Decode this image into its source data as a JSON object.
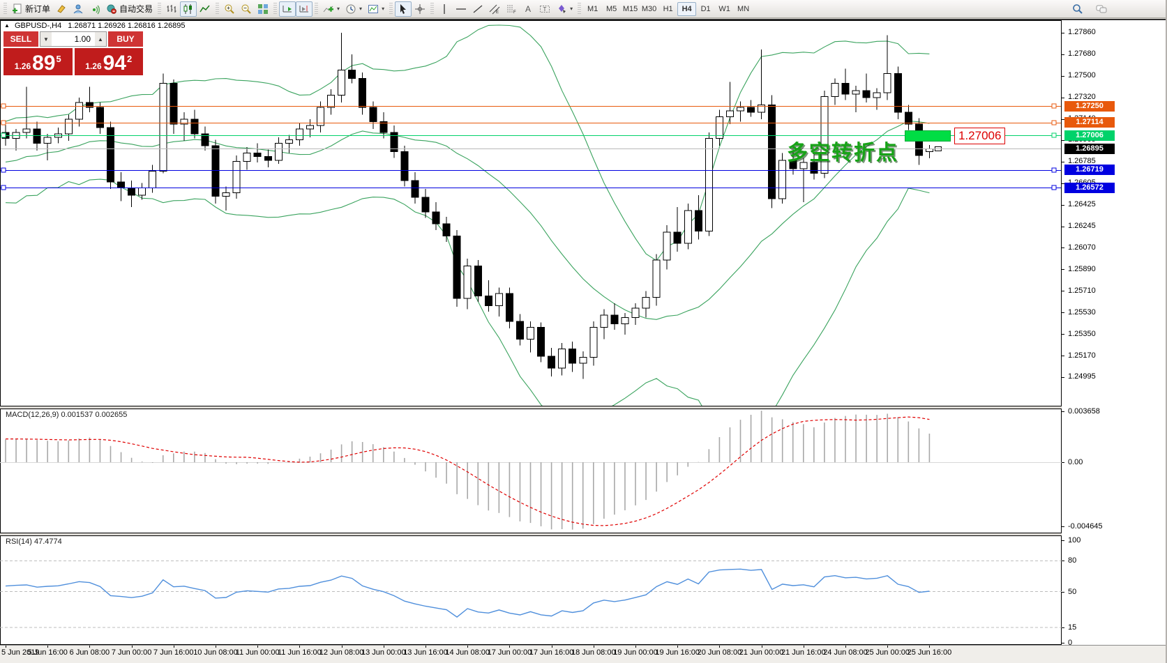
{
  "toolbar": {
    "groups": [
      {
        "items": [
          {
            "icon": "new-order-icon",
            "name": "new-order-button",
            "label": "新订单"
          },
          {
            "icon": "highlighter-icon",
            "name": "highlighter-button"
          },
          {
            "icon": "profile-icon",
            "name": "profile-button"
          },
          {
            "icon": "signal-icon",
            "name": "signal-button"
          },
          {
            "icon": "auto-trading-icon",
            "name": "auto-trading-button",
            "label": "自动交易"
          }
        ]
      },
      {
        "items": [
          {
            "icon": "bar-chart-icon",
            "name": "bar-chart-button"
          },
          {
            "icon": "candlestick-icon",
            "name": "candlestick-button",
            "active": true
          },
          {
            "icon": "line-chart-icon",
            "name": "line-chart-button"
          }
        ]
      },
      {
        "items": [
          {
            "icon": "zoom-in-icon",
            "name": "zoom-in-button"
          },
          {
            "icon": "zoom-out-icon",
            "name": "zoom-out-button"
          },
          {
            "icon": "tile-windows-icon",
            "name": "tile-windows-button"
          }
        ]
      },
      {
        "items": [
          {
            "icon": "auto-scroll-icon",
            "name": "auto-scroll-button",
            "active": true
          },
          {
            "icon": "chart-shift-icon",
            "name": "chart-shift-button",
            "active": true
          }
        ]
      },
      {
        "items": [
          {
            "icon": "indicators-icon",
            "name": "indicators-button",
            "dropdown": true
          },
          {
            "icon": "periods-icon",
            "name": "periods-button",
            "dropdown": true
          },
          {
            "icon": "templates-icon",
            "name": "templates-button",
            "dropdown": true
          }
        ]
      },
      {
        "items": [
          {
            "icon": "cursor-icon",
            "name": "cursor-button",
            "active": true
          },
          {
            "icon": "crosshair-icon",
            "name": "crosshair-button"
          }
        ]
      },
      {
        "items": [
          {
            "icon": "vertical-line-icon",
            "name": "vertical-line-button"
          },
          {
            "icon": "horizontal-line-icon",
            "name": "horizontal-line-button"
          },
          {
            "icon": "trendline-icon",
            "name": "trendline-button"
          },
          {
            "icon": "equidistant-channel-icon",
            "name": "equidistant-channel-button"
          },
          {
            "icon": "fibonacci-icon",
            "name": "fibonacci-button"
          },
          {
            "icon": "text-icon",
            "name": "text-button"
          },
          {
            "icon": "text-label-icon",
            "name": "text-label-button"
          },
          {
            "icon": "arrow-objects-icon",
            "name": "arrow-objects-button",
            "dropdown": true
          }
        ]
      }
    ],
    "timeframes": [
      "M1",
      "M5",
      "M15",
      "M30",
      "H1",
      "H4",
      "D1",
      "W1",
      "MN"
    ],
    "active_timeframe": "H4",
    "right_items": [
      {
        "icon": "search-icon",
        "name": "search-button"
      },
      {
        "icon": "chat-icon",
        "name": "chat-button"
      }
    ]
  },
  "chart_header": {
    "collapse_glyph": "▲",
    "title": "GBPUSD-,H4",
    "ohlc_text": "1.26871 1.26926 1.26816 1.26895"
  },
  "trade_panel": {
    "sell_label": "SELL",
    "buy_label": "BUY",
    "volume": "1.00",
    "volume_down_glyph": "▼",
    "volume_up_glyph": "▲",
    "sell_price": {
      "prefix": "1.26",
      "big": "89",
      "sup": "5"
    },
    "buy_price": {
      "prefix": "1.26",
      "big": "94",
      "sup": "2"
    }
  },
  "annotation": {
    "text": "多空转折点",
    "price_label": "1.27006"
  },
  "price_lines": [
    {
      "price": 1.2725,
      "color": "#e8590c",
      "badge_bg": "#e8590c",
      "handles": true
    },
    {
      "price": 1.27114,
      "color": "#e8590c",
      "badge_bg": "#e8590c",
      "handles": true
    },
    {
      "price": 1.27006,
      "color": "#00d26a",
      "badge_bg": "#00d26a",
      "handles": true
    },
    {
      "price": 1.26895,
      "color": "#b8b8b8",
      "badge_bg": "#000000",
      "handles": false
    },
    {
      "price": 1.26719,
      "color": "#0000e0",
      "badge_bg": "#0000e0",
      "handles": true
    },
    {
      "price": 1.26572,
      "color": "#0000e0",
      "badge_bg": "#0000e0",
      "handles": true
    }
  ],
  "price_axis_ticks": [
    "1.27860",
    "1.27680",
    "1.27500",
    "1.27320",
    "1.27140",
    "1.26965",
    "1.26785",
    "1.26605",
    "1.26425",
    "1.26245",
    "1.26070",
    "1.25890",
    "1.25710",
    "1.25530",
    "1.25350",
    "1.25170",
    "1.24995"
  ],
  "macd_panel": {
    "name": "MACD(12,26,9)",
    "value1": "0.001537",
    "value2": "0.002655",
    "axis": [
      "0.003658",
      "0.00",
      "-0.004645"
    ],
    "histogram_color": "#a8a8a8",
    "signal_color": "#e00000"
  },
  "rsi_panel": {
    "name": "RSI(14)",
    "value": "47.4774",
    "axis": [
      "100",
      "80",
      "50",
      "15",
      "0"
    ],
    "levels": [
      80,
      50,
      15
    ],
    "line_color": "#4f8fdc"
  },
  "time_axis": [
    "5 Jun 2019",
    "5 Jun 16:00",
    "6 Jun 08:00",
    "7 Jun 00:00",
    "7 Jun 16:00",
    "10 Jun 08:00",
    "11 Jun 00:00",
    "11 Jun 16:00",
    "12 Jun 08:00",
    "13 Jun 00:00",
    "13 Jun 16:00",
    "14 Jun 08:00",
    "17 Jun 00:00",
    "17 Jun 16:00",
    "18 Jun 08:00",
    "19 Jun 00:00",
    "19 Jun 16:00",
    "20 Jun 08:00",
    "21 Jun 00:00",
    "21 Jun 16:00",
    "24 Jun 08:00",
    "25 Jun 00:00",
    "25 Jun 16:00"
  ],
  "chart_data": {
    "type": "candlestick",
    "symbol": "GBPUSD-",
    "timeframe": "H4",
    "title": "GBPUSD-,H4 1.26871 1.26926 1.26816 1.26895",
    "ylim": [
      1.24995,
      1.2786
    ],
    "bars_per_tick": 4,
    "overlays": [
      {
        "type": "bollinger_bands",
        "period": 20,
        "deviation": 2,
        "color": "#3aa35e"
      }
    ],
    "candles": [
      [
        1.2703,
        1.2712,
        1.2692,
        1.2698
      ],
      [
        1.2698,
        1.2706,
        1.2688,
        1.2703
      ],
      [
        1.2703,
        1.2741,
        1.2698,
        1.2706
      ],
      [
        1.2706,
        1.2712,
        1.2688,
        1.2694
      ],
      [
        1.2694,
        1.2702,
        1.268,
        1.2699
      ],
      [
        1.2699,
        1.2707,
        1.2694,
        1.2702
      ],
      [
        1.2702,
        1.2718,
        1.2696,
        1.2714
      ],
      [
        1.2714,
        1.2732,
        1.2708,
        1.2728
      ],
      [
        1.2728,
        1.2741,
        1.272,
        1.2724
      ],
      [
        1.2724,
        1.2728,
        1.2702,
        1.2707
      ],
      [
        1.2707,
        1.2712,
        1.2656,
        1.2662
      ],
      [
        1.2662,
        1.267,
        1.2646,
        1.2657
      ],
      [
        1.2657,
        1.2663,
        1.2641,
        1.2651
      ],
      [
        1.2651,
        1.2661,
        1.2647,
        1.2657
      ],
      [
        1.2657,
        1.2676,
        1.2653,
        1.2671
      ],
      [
        1.2671,
        1.2752,
        1.2669,
        1.2744
      ],
      [
        1.2744,
        1.2747,
        1.2702,
        1.271
      ],
      [
        1.271,
        1.272,
        1.2696,
        1.2714
      ],
      [
        1.2714,
        1.2722,
        1.2698,
        1.2702
      ],
      [
        1.2702,
        1.2708,
        1.2688,
        1.2692
      ],
      [
        1.2692,
        1.2697,
        1.2644,
        1.265
      ],
      [
        1.265,
        1.2658,
        1.2638,
        1.2653
      ],
      [
        1.2653,
        1.2684,
        1.2648,
        1.2679
      ],
      [
        1.2679,
        1.2691,
        1.2672,
        1.2686
      ],
      [
        1.2686,
        1.2694,
        1.2678,
        1.2683
      ],
      [
        1.2683,
        1.2689,
        1.2674,
        1.268
      ],
      [
        1.268,
        1.2699,
        1.2677,
        1.2694
      ],
      [
        1.2694,
        1.2701,
        1.2686,
        1.2697
      ],
      [
        1.2697,
        1.2711,
        1.2692,
        1.2706
      ],
      [
        1.2706,
        1.2714,
        1.2699,
        1.2709
      ],
      [
        1.2709,
        1.2729,
        1.2703,
        1.2724
      ],
      [
        1.2724,
        1.2739,
        1.2718,
        1.2734
      ],
      [
        1.2734,
        1.2786,
        1.2728,
        1.2755
      ],
      [
        1.2755,
        1.2768,
        1.2744,
        1.2748
      ],
      [
        1.2748,
        1.2753,
        1.2718,
        1.2724
      ],
      [
        1.2724,
        1.2729,
        1.2706,
        1.2712
      ],
      [
        1.2712,
        1.272,
        1.2698,
        1.2703
      ],
      [
        1.2703,
        1.2709,
        1.2682,
        1.2687
      ],
      [
        1.2687,
        1.2692,
        1.2658,
        1.2663
      ],
      [
        1.2663,
        1.267,
        1.2644,
        1.2649
      ],
      [
        1.2649,
        1.2656,
        1.2632,
        1.2637
      ],
      [
        1.2637,
        1.2645,
        1.2622,
        1.2627
      ],
      [
        1.2627,
        1.2633,
        1.2612,
        1.2617
      ],
      [
        1.2617,
        1.2622,
        1.2558,
        1.2565
      ],
      [
        1.2565,
        1.2598,
        1.2556,
        1.2592
      ],
      [
        1.2592,
        1.2597,
        1.2562,
        1.2567
      ],
      [
        1.2567,
        1.258,
        1.2554,
        1.2559
      ],
      [
        1.2559,
        1.2574,
        1.255,
        1.2569
      ],
      [
        1.2569,
        1.2574,
        1.254,
        1.2546
      ],
      [
        1.2546,
        1.2552,
        1.2526,
        1.2531
      ],
      [
        1.2531,
        1.2546,
        1.252,
        1.2541
      ],
      [
        1.2541,
        1.2545,
        1.2512,
        1.2517
      ],
      [
        1.2517,
        1.2524,
        1.25,
        1.2507
      ],
      [
        1.2507,
        1.2528,
        1.2501,
        1.2523
      ],
      [
        1.2523,
        1.2529,
        1.2504,
        1.2511
      ],
      [
        1.2511,
        1.2521,
        1.2498,
        1.2516
      ],
      [
        1.2516,
        1.2546,
        1.2509,
        1.2541
      ],
      [
        1.2541,
        1.2556,
        1.2531,
        1.2551
      ],
      [
        1.2551,
        1.2561,
        1.2539,
        1.2544
      ],
      [
        1.2544,
        1.2553,
        1.2535,
        1.2549
      ],
      [
        1.2549,
        1.2561,
        1.2543,
        1.2557
      ],
      [
        1.2557,
        1.2571,
        1.2549,
        1.2566
      ],
      [
        1.2566,
        1.2602,
        1.2559,
        1.2597
      ],
      [
        1.2597,
        1.2626,
        1.2589,
        1.262
      ],
      [
        1.262,
        1.2641,
        1.2604,
        1.2611
      ],
      [
        1.2611,
        1.2644,
        1.2606,
        1.2638
      ],
      [
        1.2638,
        1.2651,
        1.2614,
        1.2621
      ],
      [
        1.2621,
        1.2703,
        1.2617,
        1.2698
      ],
      [
        1.2698,
        1.2722,
        1.2692,
        1.2716
      ],
      [
        1.2716,
        1.2745,
        1.271,
        1.2721
      ],
      [
        1.2721,
        1.2729,
        1.2712,
        1.2724
      ],
      [
        1.2724,
        1.273,
        1.2716,
        1.272
      ],
      [
        1.272,
        1.2772,
        1.2714,
        1.2726
      ],
      [
        1.2726,
        1.2734,
        1.264,
        1.2648
      ],
      [
        1.2648,
        1.2686,
        1.2644,
        1.268
      ],
      [
        1.268,
        1.269,
        1.2668,
        1.2673
      ],
      [
        1.2673,
        1.2682,
        1.2645,
        1.2678
      ],
      [
        1.2678,
        1.2686,
        1.2664,
        1.2669
      ],
      [
        1.2669,
        1.2738,
        1.2665,
        1.2733
      ],
      [
        1.2733,
        1.2748,
        1.2726,
        1.2744
      ],
      [
        1.2744,
        1.2756,
        1.273,
        1.2735
      ],
      [
        1.2735,
        1.2742,
        1.272,
        1.2738
      ],
      [
        1.2738,
        1.2752,
        1.2728,
        1.2732
      ],
      [
        1.2732,
        1.274,
        1.2722,
        1.2736
      ],
      [
        1.2736,
        1.2784,
        1.273,
        1.2752
      ],
      [
        1.2752,
        1.2758,
        1.2714,
        1.272
      ],
      [
        1.272,
        1.2726,
        1.2705,
        1.271
      ],
      [
        1.271,
        1.2715,
        1.2676,
        1.2684
      ],
      [
        1.26871,
        1.26926,
        1.26816,
        1.26895
      ]
    ]
  }
}
